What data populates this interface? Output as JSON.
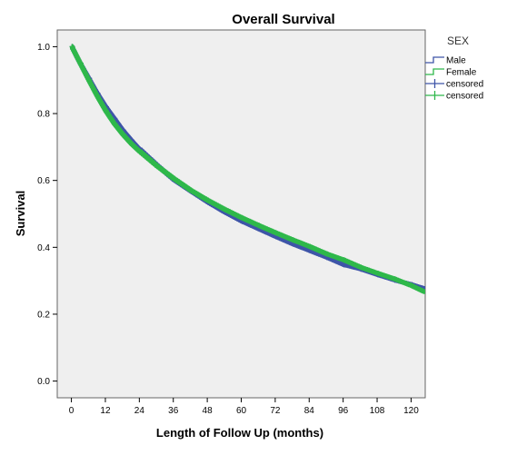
{
  "chart_data": {
    "type": "line",
    "title": "Overall Survival",
    "xlabel": "Length of Follow Up (months)",
    "ylabel": "Survival",
    "xlim": [
      -5,
      125
    ],
    "ylim": [
      -0.05,
      1.05
    ],
    "x_ticks": [
      0,
      12,
      24,
      36,
      48,
      60,
      72,
      84,
      96,
      108,
      120
    ],
    "x_tick_labels": [
      "0",
      "12",
      "24",
      "36",
      "48",
      "60",
      "72",
      "84",
      "96",
      "108",
      "120"
    ],
    "y_ticks": [
      0.0,
      0.2,
      0.4,
      0.6,
      0.8,
      1.0
    ],
    "y_tick_labels": [
      "0.0",
      "0.2",
      "0.4",
      "0.6",
      "0.8",
      "1.0"
    ],
    "grid": false,
    "plot_background": "#efefef",
    "legend": {
      "title": "SEX",
      "placement": "right",
      "entries": [
        {
          "label": "Male",
          "color": "#3e55a8",
          "symbol": "step-line"
        },
        {
          "label": "Female",
          "color": "#2eb84a",
          "symbol": "step-line"
        },
        {
          "label": "censored",
          "color": "#3e55a8",
          "symbol": "plus"
        },
        {
          "label": "censored",
          "color": "#2eb84a",
          "symbol": "plus"
        }
      ]
    },
    "series": [
      {
        "name": "Male",
        "color": "#3e55a8",
        "x": [
          0,
          3,
          6,
          9,
          12,
          15,
          18,
          21,
          24,
          30,
          36,
          42,
          48,
          54,
          60,
          66,
          72,
          78,
          84,
          90,
          96,
          102,
          108,
          114,
          120,
          125
        ],
        "y": [
          1.0,
          0.95,
          0.905,
          0.86,
          0.82,
          0.785,
          0.75,
          0.72,
          0.692,
          0.645,
          0.602,
          0.568,
          0.535,
          0.505,
          0.478,
          0.455,
          0.432,
          0.41,
          0.39,
          0.37,
          0.348,
          0.335,
          0.318,
          0.302,
          0.288,
          0.275
        ]
      },
      {
        "name": "Female",
        "color": "#2eb84a",
        "x": [
          0,
          3,
          6,
          9,
          12,
          15,
          18,
          21,
          24,
          30,
          36,
          42,
          48,
          54,
          60,
          66,
          72,
          78,
          84,
          90,
          96,
          102,
          108,
          114,
          120,
          125
        ],
        "y": [
          1.0,
          0.95,
          0.9,
          0.852,
          0.808,
          0.77,
          0.738,
          0.71,
          0.686,
          0.643,
          0.605,
          0.57,
          0.54,
          0.513,
          0.488,
          0.465,
          0.443,
          0.422,
          0.402,
          0.38,
          0.362,
          0.34,
          0.322,
          0.305,
          0.285,
          0.265
        ]
      }
    ]
  }
}
